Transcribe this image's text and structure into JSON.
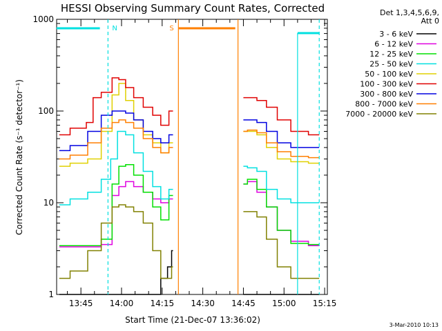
{
  "chart_data": {
    "type": "line",
    "title": "HESSI Observing Summary Count Rates, Corrected",
    "xlabel": "Start Time (21-Dec-07 13:36:02)",
    "ylabel": "Corrected Count Rate (s⁻¹ detector⁻¹)",
    "y_scale": "log",
    "ylim": [
      1,
      1000
    ],
    "xlim": [
      "13:36:02",
      "15:16:00"
    ],
    "x_ticks": [
      "13:45",
      "14:00",
      "14:15",
      "14:30",
      "14:45",
      "15:00",
      "15:15"
    ],
    "y_ticks": [
      "1",
      "10",
      "100",
      "1000"
    ],
    "legend_header": [
      "Det 1,3,4,5,6,9,",
      "Att 0"
    ],
    "legend_position": "right",
    "stamp": "3-Mar-2010 10:13",
    "data_gap": [
      "14:20",
      "14:44"
    ],
    "markers": [
      {
        "label": "N",
        "color": "#00e0e0",
        "bar": [
          "13:36",
          "13:52"
        ],
        "lines": [
          "13:55",
          "15:13"
        ],
        "dashed": true
      },
      {
        "label": "S",
        "color": "#ff7f00",
        "bar": [
          "14:21",
          "14:42"
        ],
        "lines": [
          "14:21",
          "14:43"
        ],
        "dashed": false
      }
    ],
    "solid_lines": [
      {
        "color": "#00e0e0",
        "x": [
          "15:05"
        ]
      }
    ],
    "series": [
      {
        "name": "3 - 6 keV",
        "color": "#000000",
        "x": [
          "13:37",
          "13:45",
          "13:55",
          "13:58",
          "14:00",
          "14:03",
          "14:06",
          "14:10",
          "14:13",
          "14:16",
          "14:18",
          "14:19",
          "14:45",
          "14:48",
          "14:52",
          "14:55",
          "15:00",
          "15:05",
          "15:13"
        ],
        "y": [
          1,
          1,
          1,
          1,
          1,
          1,
          1,
          1,
          1,
          1.5,
          2,
          3,
          1,
          1,
          1,
          1,
          1,
          1,
          1
        ]
      },
      {
        "name": "6 - 12 keV",
        "color": "#e000e0",
        "x": [
          "13:37",
          "13:45",
          "13:50",
          "13:55",
          "13:58",
          "14:00",
          "14:03",
          "14:06",
          "14:10",
          "14:13",
          "14:16",
          "14:19",
          "14:45",
          "14:48",
          "14:52",
          "14:55",
          "15:00",
          "15:05",
          "15:13"
        ],
        "y": [
          3.3,
          3.3,
          3.3,
          3.5,
          12,
          15,
          17,
          15,
          13,
          11,
          10,
          11,
          16,
          17,
          13,
          9,
          5,
          3.8,
          3.4
        ]
      },
      {
        "name": "12 - 25 keV",
        "color": "#00e000",
        "x": [
          "13:37",
          "13:45",
          "13:50",
          "13:55",
          "13:58",
          "14:00",
          "14:03",
          "14:06",
          "14:10",
          "14:13",
          "14:16",
          "14:19",
          "14:45",
          "14:48",
          "14:52",
          "14:55",
          "15:00",
          "15:05",
          "15:13"
        ],
        "y": [
          3.4,
          3.4,
          3.4,
          4,
          16,
          25,
          26,
          20,
          13,
          9,
          6.5,
          12,
          16,
          18,
          14,
          9,
          5,
          3.6,
          3.5
        ]
      },
      {
        "name": "25 - 50 keV",
        "color": "#00e0e0",
        "x": [
          "13:37",
          "13:45",
          "13:50",
          "13:55",
          "13:57",
          "14:00",
          "14:03",
          "14:06",
          "14:10",
          "14:13",
          "14:16",
          "14:19",
          "14:45",
          "14:48",
          "14:52",
          "14:55",
          "15:00",
          "15:05",
          "15:13"
        ],
        "y": [
          9.5,
          11,
          13,
          18,
          30,
          60,
          55,
          35,
          22,
          15,
          11,
          14,
          25,
          24,
          22,
          14,
          11,
          10,
          10
        ]
      },
      {
        "name": "50 - 100 keV",
        "color": "#e0d000",
        "x": [
          "13:37",
          "13:45",
          "13:50",
          "13:55",
          "13:58",
          "14:00",
          "14:03",
          "14:06",
          "14:10",
          "14:13",
          "14:16",
          "14:19",
          "14:45",
          "14:48",
          "14:52",
          "14:55",
          "15:00",
          "15:05",
          "15:13"
        ],
        "y": [
          25,
          27,
          30,
          60,
          150,
          200,
          130,
          80,
          55,
          45,
          35,
          45,
          60,
          60,
          55,
          40,
          30,
          28,
          27
        ]
      },
      {
        "name": "100 - 300 keV",
        "color": "#e00000",
        "x": [
          "13:37",
          "13:45",
          "13:49",
          "13:50",
          "13:55",
          "13:58",
          "14:00",
          "14:03",
          "14:06",
          "14:10",
          "14:13",
          "14:16",
          "14:19",
          "14:45",
          "14:48",
          "14:52",
          "14:55",
          "15:00",
          "15:05",
          "15:13"
        ],
        "y": [
          55,
          65,
          75,
          140,
          160,
          230,
          220,
          180,
          140,
          110,
          90,
          70,
          100,
          140,
          140,
          130,
          110,
          80,
          60,
          55
        ]
      },
      {
        "name": "300 - 800 keV",
        "color": "#0000e0",
        "x": [
          "13:37",
          "13:45",
          "13:50",
          "13:55",
          "13:58",
          "14:00",
          "14:03",
          "14:06",
          "14:10",
          "14:13",
          "14:16",
          "14:19",
          "14:45",
          "14:48",
          "14:52",
          "14:55",
          "15:00",
          "15:05",
          "15:13"
        ],
        "y": [
          37,
          42,
          60,
          90,
          100,
          100,
          95,
          80,
          60,
          50,
          45,
          55,
          80,
          80,
          75,
          60,
          45,
          40,
          40
        ]
      },
      {
        "name": "800 - 7000 keV",
        "color": "#ff7f00",
        "x": [
          "13:37",
          "13:45",
          "13:50",
          "13:55",
          "13:58",
          "14:00",
          "14:03",
          "14:06",
          "14:10",
          "14:13",
          "14:16",
          "14:19",
          "14:45",
          "14:48",
          "14:52",
          "14:55",
          "15:00",
          "15:05",
          "15:13"
        ],
        "y": [
          30,
          33,
          45,
          65,
          75,
          80,
          75,
          65,
          50,
          40,
          35,
          40,
          60,
          62,
          58,
          45,
          36,
          32,
          31
        ]
      },
      {
        "name": "7000 - 20000 keV",
        "color": "#808000",
        "x": [
          "13:37",
          "13:45",
          "13:50",
          "13:55",
          "13:58",
          "14:00",
          "14:03",
          "14:06",
          "14:10",
          "14:13",
          "14:16",
          "14:18",
          "14:19",
          "14:45",
          "14:48",
          "14:52",
          "14:55",
          "15:00",
          "15:05",
          "15:13"
        ],
        "y": [
          1.5,
          1.8,
          3,
          6,
          9,
          9.5,
          9,
          8,
          6,
          3,
          1.5,
          1.5,
          2,
          8,
          8,
          7,
          4,
          2,
          1.5,
          1.5
        ]
      }
    ]
  }
}
